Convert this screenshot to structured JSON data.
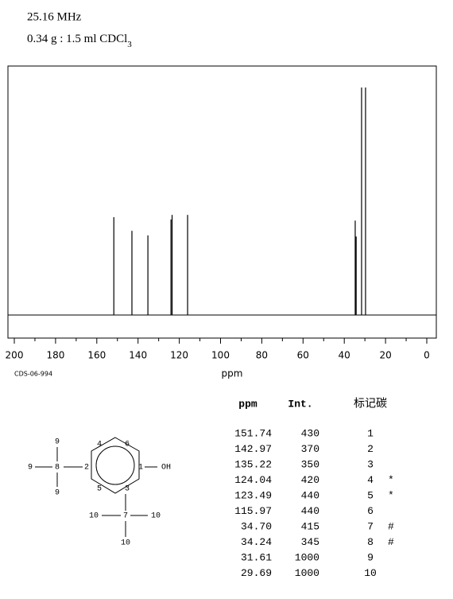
{
  "header": {
    "frequency": "25.16 MHz",
    "sample": "0.34 g : 1.5 ml CDCl",
    "sample_subscript": "3"
  },
  "chart_data": {
    "type": "spectrum",
    "xlabel": "ppm",
    "code": "CDS-06-994",
    "x": [
      151.74,
      142.97,
      135.22,
      124.04,
      123.49,
      115.97,
      34.7,
      34.24,
      31.61,
      29.69
    ],
    "values": [
      430,
      370,
      350,
      420,
      440,
      440,
      415,
      345,
      1000,
      1000
    ],
    "color": "#000000",
    "xlim": [
      200,
      0
    ],
    "xticks": [
      200,
      180,
      160,
      140,
      120,
      100,
      80,
      60,
      40,
      20,
      0
    ],
    "xminorticks": [
      190,
      170,
      150,
      130,
      110,
      90,
      70,
      50,
      30,
      10
    ],
    "ylim": [
      0,
      1000
    ]
  },
  "table": {
    "header": [
      "ppm",
      "Int.",
      "标记碳"
    ],
    "rows": [
      [
        "151.74",
        "430",
        "1",
        ""
      ],
      [
        "142.97",
        "370",
        "2",
        ""
      ],
      [
        "135.22",
        "350",
        "3",
        ""
      ],
      [
        "124.04",
        "420",
        "4",
        "*"
      ],
      [
        "123.49",
        "440",
        "5",
        "*"
      ],
      [
        "115.97",
        "440",
        "6",
        ""
      ],
      [
        "34.70",
        "415",
        "7",
        "#"
      ],
      [
        "34.24",
        "345",
        "8",
        "#"
      ],
      [
        "31.61",
        "1000",
        "9",
        ""
      ],
      [
        "29.69",
        "1000",
        "10",
        ""
      ]
    ]
  },
  "structure": {
    "labels": [
      "9",
      "9",
      "8",
      "9",
      "2",
      "4",
      "6",
      "1",
      "OH",
      "5",
      "3",
      "10",
      "7",
      "10",
      "10"
    ]
  }
}
